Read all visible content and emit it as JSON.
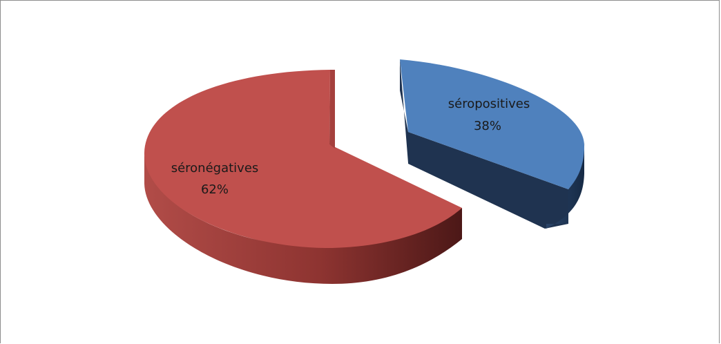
{
  "chart_data": {
    "type": "pie",
    "style": "3d-exploded",
    "title": "",
    "slices": [
      {
        "label": "séropositives",
        "percent_label": "38%",
        "value": 38,
        "color": "#4f81bd",
        "side_dark": "#1f3350",
        "exploded": true
      },
      {
        "label": "séronégatives",
        "percent_label": "62%",
        "value": 62,
        "color": "#c0504d",
        "side_dark": "#5c1e1c",
        "exploded": false
      }
    ]
  }
}
